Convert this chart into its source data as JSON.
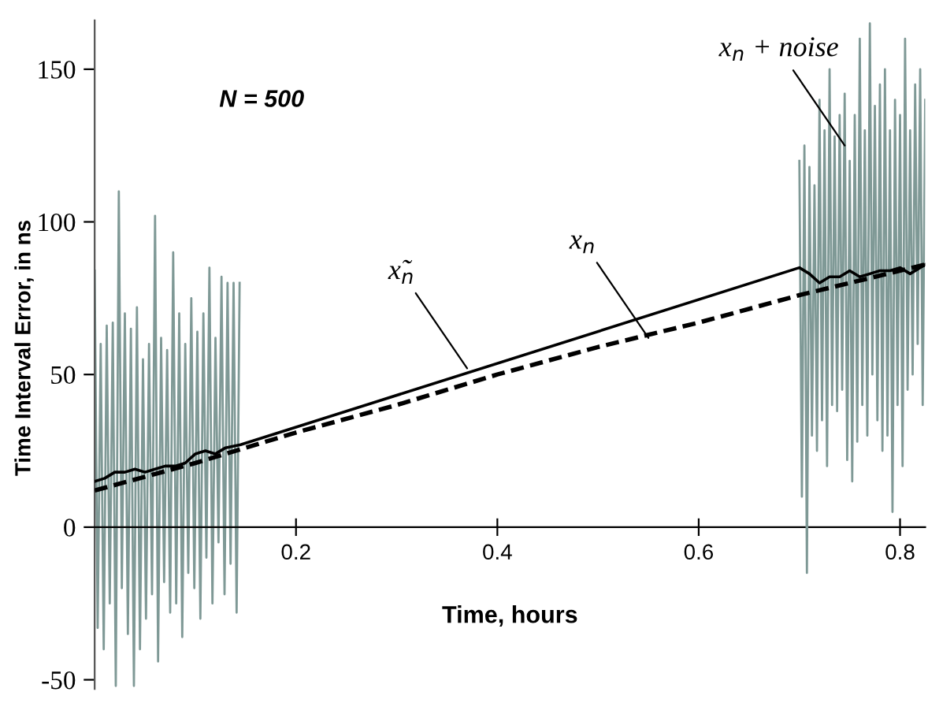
{
  "chart_data": {
    "type": "line",
    "xlabel": "Time, hours",
    "ylabel": "Time Interval Error, in ns",
    "xlim": [
      0,
      0.825
    ],
    "ylim": [
      -53,
      166
    ],
    "xticks": [
      0.2,
      0.4,
      0.6,
      0.8
    ],
    "yticks": [
      -50,
      0,
      50,
      100,
      150
    ],
    "grid": false,
    "marker": "none",
    "series": [
      {
        "color": "#7f9996",
        "line_style": "solid",
        "x": [
          0,
          0.003,
          0.006,
          0.009,
          0.012,
          0.015,
          0.018,
          0.021,
          0.024,
          0.027,
          0.03,
          0.033,
          0.036,
          0.039,
          0.042,
          0.045,
          0.048,
          0.051,
          0.054,
          0.057,
          0.06,
          0.063,
          0.066,
          0.069,
          0.072,
          0.075,
          0.078,
          0.081,
          0.084,
          0.087,
          0.09,
          0.093,
          0.096,
          0.099,
          0.102,
          0.105,
          0.108,
          0.111,
          0.114,
          0.117,
          0.12,
          0.123,
          0.126,
          0.129,
          0.132,
          0.135,
          0.138,
          0.141,
          0.144
        ],
        "values": [
          84,
          -33,
          60,
          -40,
          66,
          -25,
          67,
          -52,
          110,
          -20,
          70,
          -35,
          65,
          -52,
          72,
          -40,
          55,
          -30,
          60,
          -22,
          102,
          -44,
          62,
          -18,
          58,
          -28,
          90,
          -25,
          70,
          -36,
          60,
          -15,
          75,
          -20,
          64,
          -30,
          70,
          -10,
          85,
          -25,
          62,
          -5,
          82,
          -22,
          80,
          -12,
          80,
          -28,
          80
        ]
      },
      {
        "color": "#7f9996",
        "line_style": "solid",
        "x": [
          0.7,
          0.7025,
          0.705,
          0.7075,
          0.71,
          0.7125,
          0.715,
          0.7175,
          0.72,
          0.7225,
          0.725,
          0.7275,
          0.73,
          0.7325,
          0.735,
          0.7375,
          0.74,
          0.7425,
          0.745,
          0.7475,
          0.75,
          0.7525,
          0.755,
          0.7575,
          0.76,
          0.7625,
          0.765,
          0.7675,
          0.77,
          0.7725,
          0.775,
          0.7775,
          0.78,
          0.7825,
          0.785,
          0.7875,
          0.79,
          0.7925,
          0.795,
          0.7975,
          0.8,
          0.8025,
          0.805,
          0.8075,
          0.81,
          0.8125,
          0.815,
          0.8175,
          0.82,
          0.8225,
          0.825
        ],
        "values": [
          120,
          10,
          125,
          -15,
          118,
          30,
          112,
          25,
          140,
          35,
          130,
          20,
          150,
          40,
          128,
          38,
          135,
          45,
          142,
          22,
          120,
          15,
          135,
          28,
          160,
          40,
          130,
          30,
          165,
          50,
          138,
          35,
          145,
          25,
          150,
          30,
          130,
          5,
          140,
          40,
          135,
          20,
          160,
          45,
          130,
          50,
          145,
          60,
          150,
          40,
          140
        ]
      },
      {
        "color": "#000000",
        "line_style": "solid",
        "x": [
          0,
          0.01,
          0.02,
          0.03,
          0.04,
          0.05,
          0.06,
          0.07,
          0.08,
          0.09,
          0.1,
          0.11,
          0.12,
          0.13,
          0.145,
          0.7,
          0.71,
          0.72,
          0.73,
          0.74,
          0.75,
          0.76,
          0.77,
          0.78,
          0.79,
          0.8,
          0.81,
          0.825
        ],
        "values": [
          15,
          16,
          18,
          18,
          19,
          18,
          19,
          20,
          20,
          21,
          24,
          25,
          24,
          26,
          27,
          85,
          83,
          80,
          82,
          82,
          84,
          82,
          83,
          84,
          84,
          85,
          83,
          86
        ]
      },
      {
        "color": "#000000",
        "line_style": "dashed",
        "x": [
          0,
          0.1,
          0.2,
          0.3,
          0.4,
          0.5,
          0.6,
          0.7,
          0.825
        ],
        "values": [
          12,
          21,
          31,
          40,
          50,
          59,
          67,
          76,
          86
        ]
      }
    ],
    "annotations": [
      "N = 500",
      {
        "text": "x̃$_{n}$",
        "x": 0.37,
        "y": 52
      },
      {
        "text": "x$_{n}$",
        "x": 0.55,
        "y": 62
      },
      {
        "text": "x$_{n}$ + noise",
        "x": 0.745,
        "y": 125
      }
    ]
  }
}
